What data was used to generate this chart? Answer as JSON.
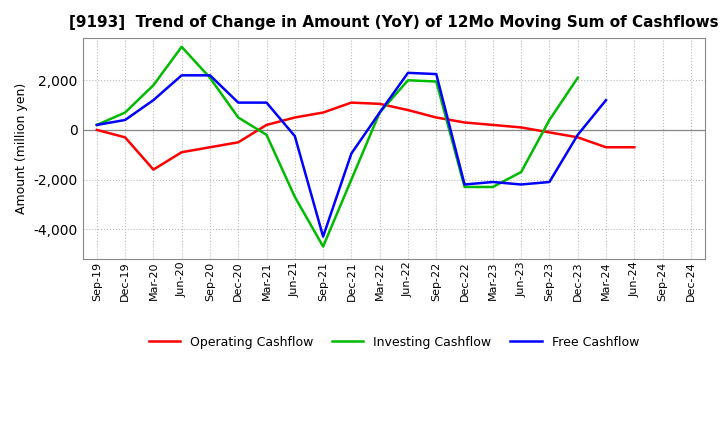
{
  "title": "[9193]  Trend of Change in Amount (YoY) of 12Mo Moving Sum of Cashflows",
  "ylabel": "Amount (million yen)",
  "x_labels": [
    "Sep-19",
    "Dec-19",
    "Mar-20",
    "Jun-20",
    "Sep-20",
    "Dec-20",
    "Mar-21",
    "Jun-21",
    "Sep-21",
    "Dec-21",
    "Mar-22",
    "Jun-22",
    "Sep-22",
    "Dec-22",
    "Mar-23",
    "Jun-23",
    "Sep-23",
    "Dec-23",
    "Mar-24",
    "Jun-24",
    "Sep-24",
    "Dec-24"
  ],
  "operating_cashflow": [
    0,
    -300,
    -1600,
    -900,
    -700,
    -500,
    200,
    500,
    700,
    1100,
    1050,
    800,
    500,
    300,
    200,
    100,
    -100,
    -300,
    -700,
    -700,
    null,
    null
  ],
  "investing_cashflow": [
    200,
    700,
    1800,
    3350,
    2100,
    500,
    -200,
    -2700,
    -4700,
    -2000,
    700,
    2000,
    1950,
    -2300,
    -2300,
    -1700,
    400,
    2100,
    null,
    null,
    null,
    null
  ],
  "free_cashflow": [
    200,
    400,
    1200,
    2200,
    2200,
    1100,
    1100,
    -250,
    -4300,
    -950,
    700,
    2300,
    2250,
    -2200,
    -2100,
    -2200,
    -2100,
    -200,
    1200,
    null,
    null,
    null
  ],
  "operating_color": "#ff0000",
  "investing_color": "#00bb00",
  "free_color": "#0000ff",
  "ylim": [
    -5200,
    3700
  ],
  "yticks": [
    -4000,
    -2000,
    0,
    2000
  ],
  "background_color": "#ffffff",
  "grid_color": "#bbbbbb",
  "line_width": 1.8
}
